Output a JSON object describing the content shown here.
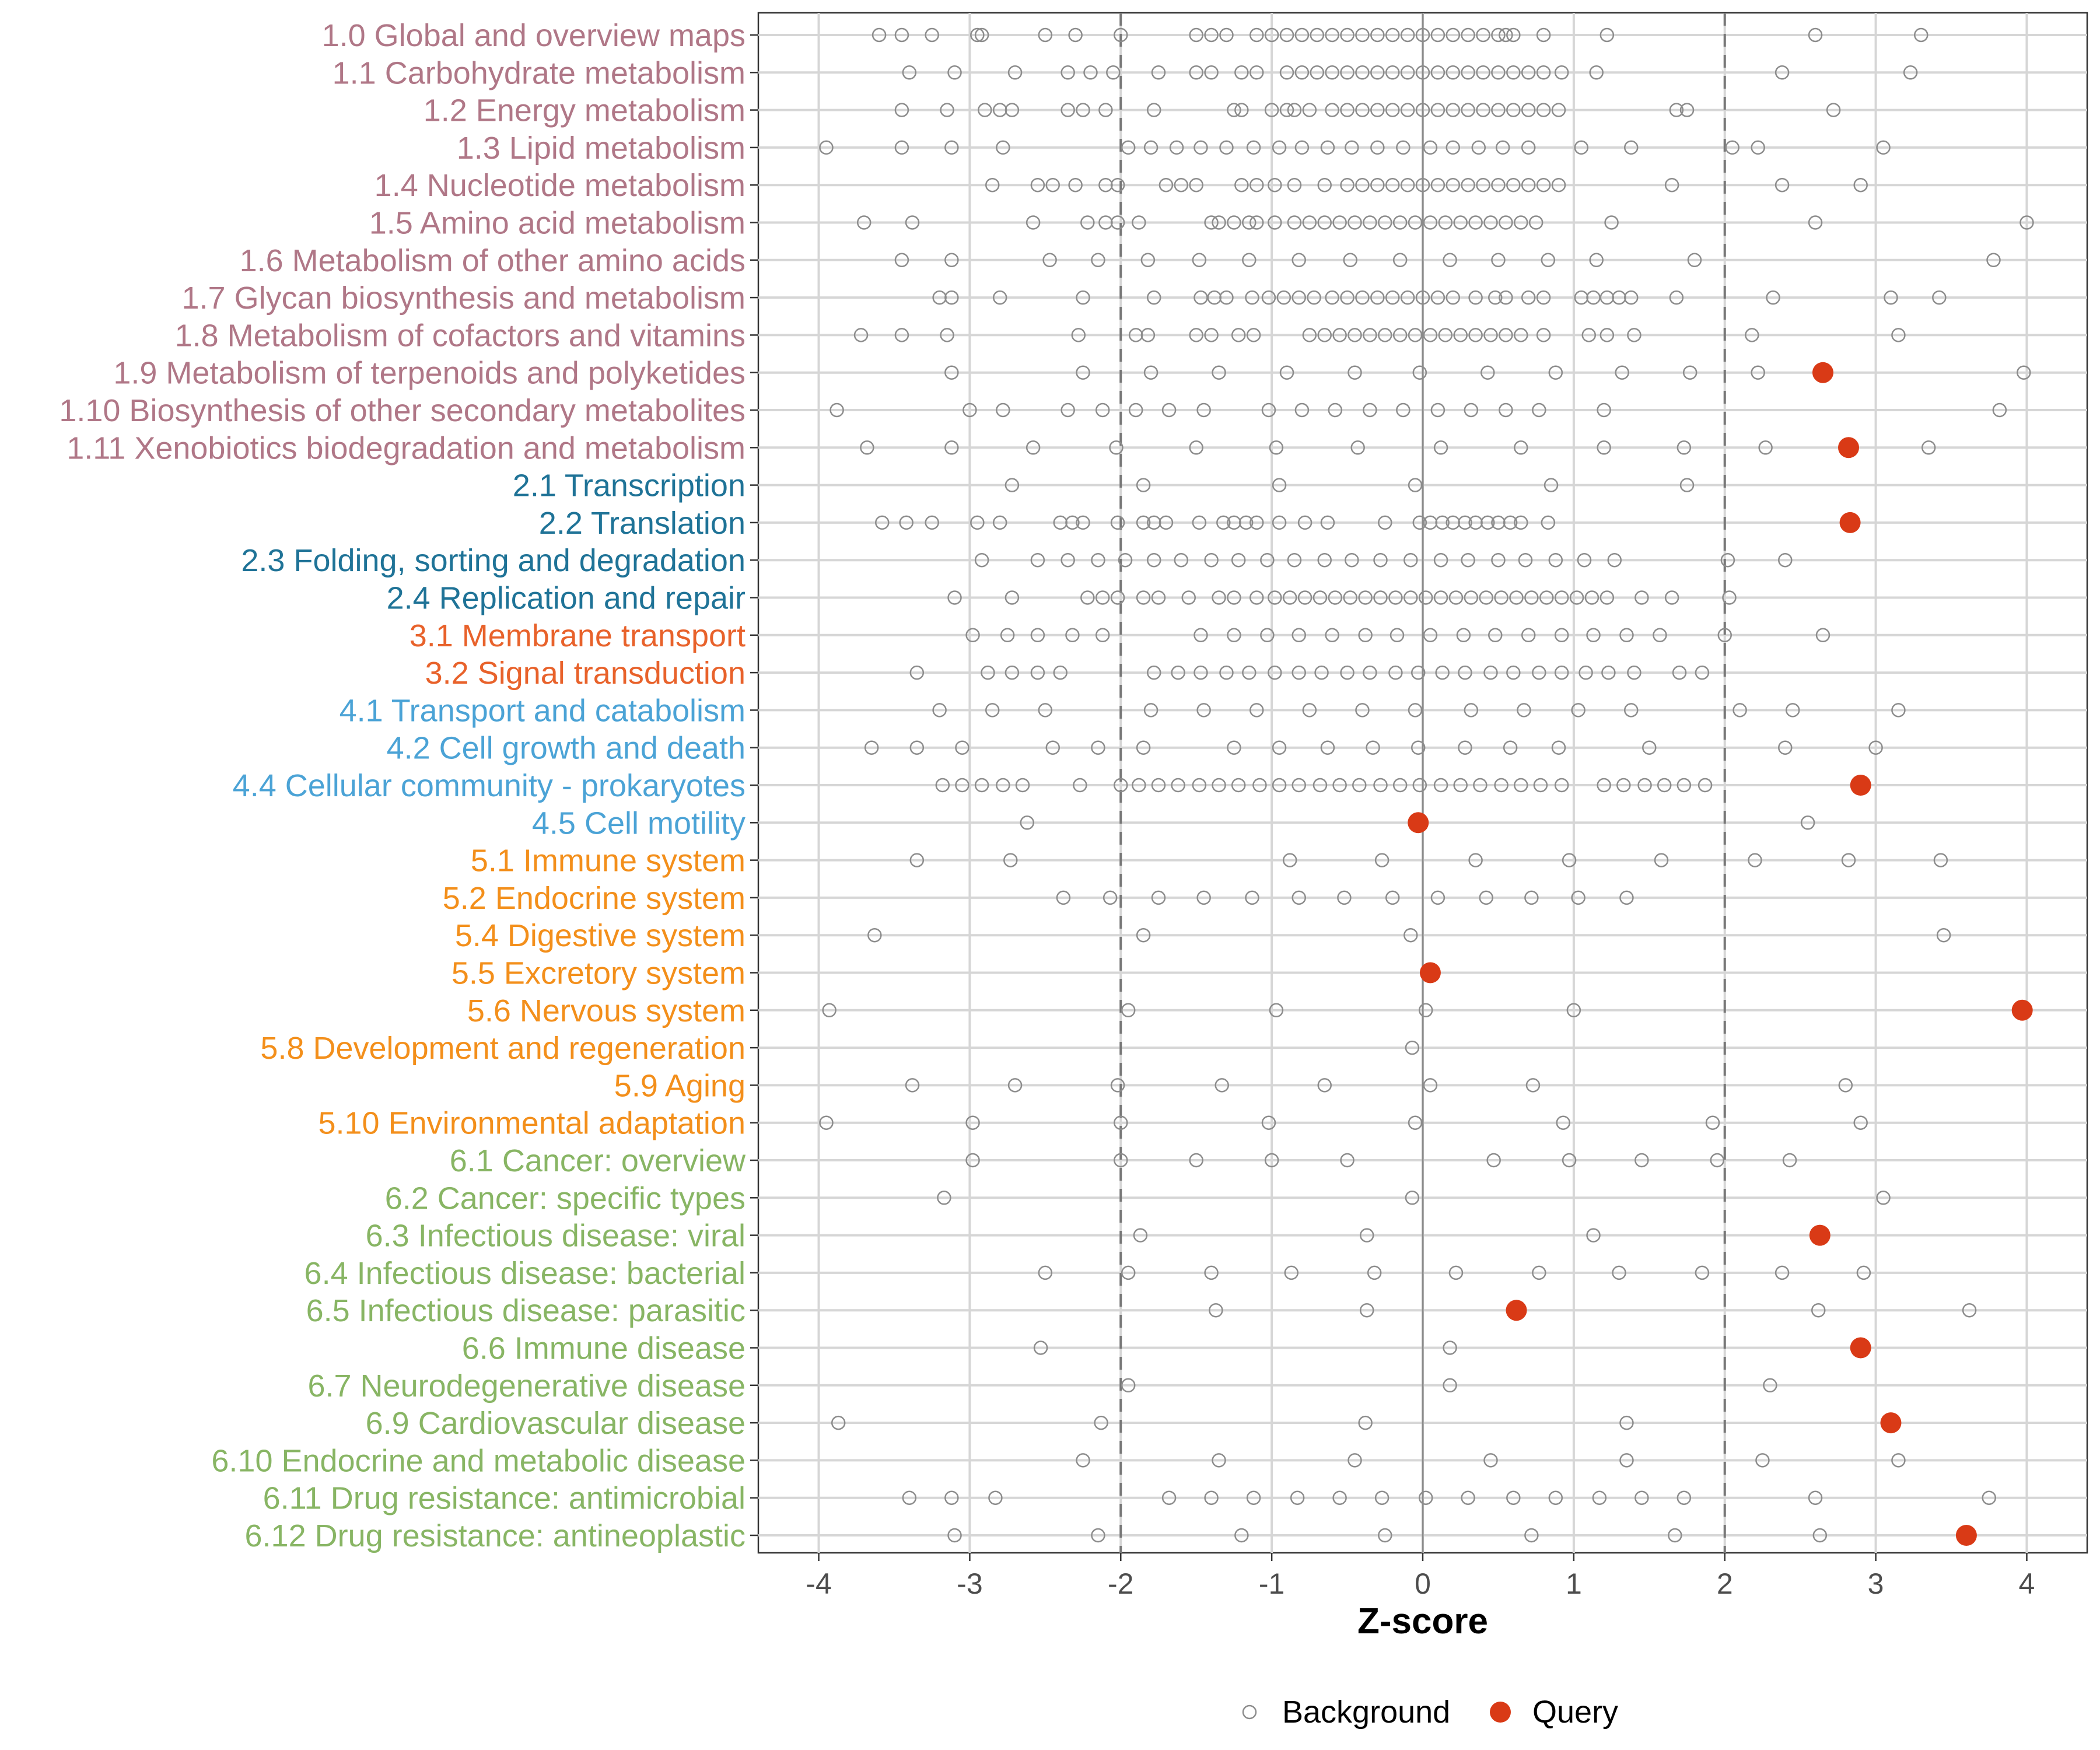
{
  "chart_data": {
    "type": "scatter",
    "xlabel": "Z-score",
    "xlim": [
      -4.4,
      4.4
    ],
    "xticks": [
      -4,
      -3,
      -2,
      -1,
      0,
      1,
      2,
      3,
      4
    ],
    "threshold_lines": [
      -2,
      2
    ],
    "zero_line": 0,
    "legend": {
      "position": "bottom",
      "entries": [
        {
          "name": "Background",
          "style": "open-circle",
          "color": "#8c8c8c"
        },
        {
          "name": "Query",
          "style": "filled-circle",
          "color": "#d93a16"
        }
      ]
    },
    "group_colors": {
      "1": "#b07787",
      "2": "#1f7397",
      "3": "#e8622b",
      "4": "#4ba3d6",
      "5": "#f38f1b",
      "6": "#88b564"
    },
    "categories": [
      {
        "label": "1.0 Global and overview maps",
        "group": "1",
        "query": null,
        "background": [
          -3.6,
          -3.45,
          -3.25,
          -2.95,
          -2.92,
          -2.5,
          -2.3,
          -2.0,
          -1.5,
          -1.4,
          -1.3,
          -1.1,
          -1.0,
          -0.9,
          -0.8,
          -0.7,
          -0.6,
          -0.5,
          -0.4,
          -0.3,
          -0.2,
          -0.1,
          0.0,
          0.1,
          0.2,
          0.3,
          0.4,
          0.5,
          0.55,
          0.6,
          0.8,
          1.22,
          2.6,
          3.3
        ]
      },
      {
        "label": "1.1 Carbohydrate metabolism",
        "group": "1",
        "query": null,
        "background": [
          -3.4,
          -3.1,
          -2.7,
          -2.35,
          -2.2,
          -2.05,
          -1.75,
          -1.5,
          -1.4,
          -1.2,
          -1.1,
          -0.9,
          -0.8,
          -0.7,
          -0.6,
          -0.5,
          -0.4,
          -0.3,
          -0.2,
          -0.1,
          0.0,
          0.1,
          0.2,
          0.3,
          0.4,
          0.5,
          0.6,
          0.7,
          0.8,
          0.92,
          1.15,
          2.38,
          3.23
        ]
      },
      {
        "label": "1.2 Energy metabolism",
        "group": "1",
        "query": null,
        "background": [
          -3.45,
          -3.15,
          -2.9,
          -2.8,
          -2.72,
          -2.35,
          -2.25,
          -2.1,
          -1.78,
          -1.25,
          -1.2,
          -1.0,
          -0.9,
          -0.85,
          -0.75,
          -0.6,
          -0.5,
          -0.4,
          -0.3,
          -0.2,
          -0.1,
          0.0,
          0.1,
          0.2,
          0.3,
          0.4,
          0.5,
          0.6,
          0.7,
          0.8,
          0.9,
          1.68,
          1.75,
          2.72
        ]
      },
      {
        "label": "1.3 Lipid metabolism",
        "group": "1",
        "query": null,
        "background": [
          -3.95,
          -3.45,
          -3.12,
          -2.78,
          -1.95,
          -1.8,
          -1.63,
          -1.47,
          -1.3,
          -1.12,
          -0.95,
          -0.8,
          -0.63,
          -0.47,
          -0.3,
          -0.13,
          0.05,
          0.2,
          0.37,
          0.53,
          0.7,
          1.05,
          1.38,
          2.05,
          2.22,
          3.05
        ]
      },
      {
        "label": "1.4 Nucleotide metabolism",
        "group": "1",
        "query": null,
        "background": [
          -2.85,
          -2.55,
          -2.45,
          -2.3,
          -2.1,
          -2.02,
          -1.7,
          -1.6,
          -1.5,
          -1.2,
          -1.1,
          -0.98,
          -0.85,
          -0.65,
          -0.5,
          -0.4,
          -0.3,
          -0.2,
          -0.1,
          0.0,
          0.1,
          0.2,
          0.3,
          0.4,
          0.5,
          0.6,
          0.7,
          0.8,
          0.9,
          1.65,
          2.38,
          2.9
        ]
      },
      {
        "label": "1.5 Amino acid metabolism",
        "group": "1",
        "query": null,
        "background": [
          -3.7,
          -3.38,
          -2.58,
          -2.22,
          -2.1,
          -2.02,
          -1.88,
          -1.4,
          -1.35,
          -1.25,
          -1.15,
          -1.1,
          -0.98,
          -0.85,
          -0.75,
          -0.65,
          -0.55,
          -0.45,
          -0.35,
          -0.25,
          -0.15,
          -0.05,
          0.05,
          0.15,
          0.25,
          0.35,
          0.45,
          0.55,
          0.65,
          0.75,
          1.25,
          2.6,
          4.0
        ]
      },
      {
        "label": "1.6 Metabolism of other amino acids",
        "group": "1",
        "query": null,
        "background": [
          -3.45,
          -3.12,
          -2.47,
          -2.15,
          -1.82,
          -1.48,
          -1.15,
          -0.82,
          -0.48,
          -0.15,
          0.18,
          0.5,
          0.83,
          1.15,
          1.8,
          3.78
        ]
      },
      {
        "label": "1.7 Glycan biosynthesis and metabolism",
        "group": "1",
        "query": null,
        "background": [
          -3.2,
          -3.12,
          -2.8,
          -2.25,
          -1.78,
          -1.47,
          -1.38,
          -1.3,
          -1.13,
          -1.02,
          -0.92,
          -0.82,
          -0.72,
          -0.6,
          -0.5,
          -0.4,
          -0.3,
          -0.2,
          -0.1,
          0.0,
          0.1,
          0.2,
          0.35,
          0.48,
          0.55,
          0.7,
          0.8,
          1.05,
          1.13,
          1.22,
          1.3,
          1.38,
          1.68,
          2.32,
          3.1,
          3.42
        ]
      },
      {
        "label": "1.8 Metabolism of cofactors and vitamins",
        "group": "1",
        "query": null,
        "background": [
          -3.72,
          -3.45,
          -3.15,
          -2.28,
          -1.9,
          -1.82,
          -1.5,
          -1.4,
          -1.22,
          -1.12,
          -0.75,
          -0.65,
          -0.55,
          -0.45,
          -0.35,
          -0.25,
          -0.15,
          -0.05,
          0.05,
          0.15,
          0.25,
          0.35,
          0.45,
          0.55,
          0.65,
          0.8,
          1.1,
          1.22,
          1.4,
          2.18,
          3.15
        ]
      },
      {
        "label": "1.9 Metabolism of terpenoids and polyketides",
        "group": "1",
        "query": 2.65,
        "background": [
          -3.12,
          -2.25,
          -1.8,
          -1.35,
          -0.9,
          -0.45,
          -0.02,
          0.43,
          0.88,
          1.32,
          1.77,
          2.22,
          3.98
        ]
      },
      {
        "label": "1.10 Biosynthesis of other secondary metabolites",
        "group": "1",
        "query": null,
        "background": [
          -3.88,
          -3.0,
          -2.78,
          -2.35,
          -2.12,
          -1.9,
          -1.68,
          -1.45,
          -1.02,
          -0.8,
          -0.58,
          -0.35,
          -0.13,
          0.1,
          0.32,
          0.55,
          0.77,
          1.2,
          3.82
        ]
      },
      {
        "label": "1.11 Xenobiotics biodegradation and metabolism",
        "group": "1",
        "query": 2.82,
        "background": [
          -3.68,
          -3.12,
          -2.58,
          -2.03,
          -1.5,
          -0.97,
          -0.43,
          0.12,
          0.65,
          1.2,
          1.73,
          2.27,
          3.35
        ]
      },
      {
        "label": "2.1 Transcription",
        "group": "2",
        "query": null,
        "background": [
          -2.72,
          -1.85,
          -0.95,
          -0.05,
          0.85,
          1.75
        ]
      },
      {
        "label": "2.2 Translation",
        "group": "2",
        "query": 2.83,
        "background": [
          -3.58,
          -3.42,
          -3.25,
          -2.95,
          -2.8,
          -2.4,
          -2.32,
          -2.25,
          -2.02,
          -1.85,
          -1.78,
          -1.7,
          -1.48,
          -1.32,
          -1.25,
          -1.17,
          -1.1,
          -0.95,
          -0.78,
          -0.63,
          -0.25,
          -0.02,
          0.05,
          0.13,
          0.2,
          0.28,
          0.35,
          0.43,
          0.5,
          0.58,
          0.65,
          0.83
        ]
      },
      {
        "label": "2.3 Folding, sorting and degradation",
        "group": "2",
        "query": null,
        "background": [
          -2.92,
          -2.55,
          -2.35,
          -2.15,
          -1.97,
          -1.78,
          -1.6,
          -1.4,
          -1.22,
          -1.03,
          -0.85,
          -0.65,
          -0.47,
          -0.28,
          -0.08,
          0.12,
          0.3,
          0.5,
          0.68,
          0.88,
          1.07,
          1.27,
          2.02,
          2.4
        ]
      },
      {
        "label": "2.4 Replication and repair",
        "group": "2",
        "query": null,
        "background": [
          -3.1,
          -2.72,
          -2.22,
          -2.12,
          -2.02,
          -1.85,
          -1.75,
          -1.55,
          -1.35,
          -1.25,
          -1.1,
          -0.98,
          -0.88,
          -0.78,
          -0.68,
          -0.58,
          -0.48,
          -0.38,
          -0.28,
          -0.18,
          -0.08,
          0.02,
          0.12,
          0.22,
          0.32,
          0.42,
          0.52,
          0.62,
          0.72,
          0.82,
          0.92,
          1.02,
          1.12,
          1.22,
          1.45,
          1.65,
          2.03
        ]
      },
      {
        "label": "3.1 Membrane transport",
        "group": "3",
        "query": null,
        "background": [
          -2.98,
          -2.75,
          -2.55,
          -2.32,
          -2.12,
          -1.47,
          -1.25,
          -1.03,
          -0.82,
          -0.6,
          -0.38,
          -0.17,
          0.05,
          0.27,
          0.48,
          0.7,
          0.92,
          1.13,
          1.35,
          1.57,
          2.0,
          2.65
        ]
      },
      {
        "label": "3.2 Signal transduction",
        "group": "3",
        "query": null,
        "background": [
          -3.35,
          -2.88,
          -2.72,
          -2.55,
          -2.4,
          -1.78,
          -1.62,
          -1.47,
          -1.3,
          -1.15,
          -0.98,
          -0.82,
          -0.67,
          -0.5,
          -0.35,
          -0.18,
          -0.03,
          0.13,
          0.28,
          0.45,
          0.6,
          0.77,
          0.92,
          1.08,
          1.23,
          1.4,
          1.7,
          1.85
        ]
      },
      {
        "label": "4.1 Transport and catabolism",
        "group": "4",
        "query": null,
        "background": [
          -3.2,
          -2.85,
          -2.5,
          -1.8,
          -1.45,
          -1.1,
          -0.75,
          -0.4,
          -0.05,
          0.32,
          0.67,
          1.03,
          1.38,
          2.1,
          2.45,
          3.15
        ]
      },
      {
        "label": "4.2 Cell growth and death",
        "group": "4",
        "query": null,
        "background": [
          -3.65,
          -3.35,
          -3.05,
          -2.45,
          -2.15,
          -1.85,
          -1.25,
          -0.95,
          -0.63,
          -0.33,
          -0.03,
          0.28,
          0.58,
          0.9,
          1.5,
          2.4,
          3.0
        ]
      },
      {
        "label": "4.4 Cellular community - prokaryotes",
        "group": "4",
        "query": 2.9,
        "background": [
          -3.18,
          -3.05,
          -2.92,
          -2.78,
          -2.65,
          -2.27,
          -2.0,
          -1.88,
          -1.75,
          -1.62,
          -1.48,
          -1.35,
          -1.22,
          -1.08,
          -0.95,
          -0.82,
          -0.68,
          -0.55,
          -0.42,
          -0.28,
          -0.15,
          -0.02,
          0.12,
          0.25,
          0.38,
          0.52,
          0.65,
          0.78,
          0.92,
          1.2,
          1.33,
          1.47,
          1.6,
          1.73,
          1.87
        ]
      },
      {
        "label": "4.5 Cell motility",
        "group": "4",
        "query": -0.03,
        "background": [
          -2.62,
          2.55
        ]
      },
      {
        "label": "5.1 Immune system",
        "group": "5",
        "query": null,
        "background": [
          -3.35,
          -2.73,
          -0.88,
          -0.27,
          0.35,
          0.97,
          1.58,
          2.2,
          2.82,
          3.43
        ]
      },
      {
        "label": "5.2 Endocrine system",
        "group": "5",
        "query": null,
        "background": [
          -2.38,
          -2.07,
          -1.75,
          -1.45,
          -1.13,
          -0.82,
          -0.52,
          -0.2,
          0.1,
          0.42,
          0.72,
          1.03,
          1.35
        ]
      },
      {
        "label": "5.4 Digestive system",
        "group": "5",
        "query": null,
        "background": [
          -3.63,
          -1.85,
          -0.08,
          3.45
        ]
      },
      {
        "label": "5.5 Excretory system",
        "group": "5",
        "query": 0.05,
        "background": []
      },
      {
        "label": "5.6 Nervous system",
        "group": "5",
        "query": 3.97,
        "background": [
          -3.93,
          -1.95,
          -0.97,
          0.02,
          1.0
        ]
      },
      {
        "label": "5.8 Development and regeneration",
        "group": "5",
        "query": null,
        "background": [
          -0.07
        ]
      },
      {
        "label": "5.9 Aging",
        "group": "5",
        "query": null,
        "background": [
          -3.38,
          -2.7,
          -2.02,
          -1.33,
          -0.65,
          0.05,
          0.73,
          2.8
        ]
      },
      {
        "label": "5.10 Environmental adaptation",
        "group": "5",
        "query": null,
        "background": [
          -3.95,
          -2.98,
          -2.0,
          -1.02,
          -0.05,
          0.93,
          1.92,
          2.9
        ]
      },
      {
        "label": "6.1 Cancer: overview",
        "group": "6",
        "query": null,
        "background": [
          -2.98,
          -2.0,
          -1.5,
          -1.0,
          -0.5,
          0.47,
          0.97,
          1.45,
          1.95,
          2.43
        ]
      },
      {
        "label": "6.2 Cancer: specific types",
        "group": "6",
        "query": null,
        "background": [
          -3.17,
          -0.07,
          3.05
        ]
      },
      {
        "label": "6.3 Infectious disease: viral",
        "group": "6",
        "query": 2.63,
        "background": [
          -1.87,
          -0.37,
          1.13
        ]
      },
      {
        "label": "6.4 Infectious disease: bacterial",
        "group": "6",
        "query": null,
        "background": [
          -2.5,
          -1.95,
          -1.4,
          -0.87,
          -0.32,
          0.22,
          0.77,
          1.3,
          1.85,
          2.38,
          2.92
        ]
      },
      {
        "label": "6.5 Infectious disease: parasitic",
        "group": "6",
        "query": 0.62,
        "background": [
          -1.37,
          -0.37,
          2.62,
          3.62
        ]
      },
      {
        "label": "6.6 Immune disease",
        "group": "6",
        "query": 2.9,
        "background": [
          -2.53,
          0.18
        ]
      },
      {
        "label": "6.7 Neurodegenerative disease",
        "group": "6",
        "query": null,
        "background": [
          -1.95,
          0.18,
          2.3
        ]
      },
      {
        "label": "6.9 Cardiovascular disease",
        "group": "6",
        "query": 3.1,
        "background": [
          -3.87,
          -2.13,
          -0.38,
          1.35
        ]
      },
      {
        "label": "6.10 Endocrine and metabolic disease",
        "group": "6",
        "query": null,
        "background": [
          -2.25,
          -1.35,
          -0.45,
          0.45,
          1.35,
          2.25,
          3.15
        ]
      },
      {
        "label": "6.11 Drug resistance: antimicrobial",
        "group": "6",
        "query": null,
        "background": [
          -3.4,
          -3.12,
          -2.83,
          -1.68,
          -1.4,
          -1.12,
          -0.83,
          -0.55,
          -0.27,
          0.02,
          0.3,
          0.6,
          0.88,
          1.17,
          1.45,
          1.73,
          2.6,
          3.75
        ]
      },
      {
        "label": "6.12 Drug resistance: antineoplastic",
        "group": "6",
        "query": 3.6,
        "background": [
          -3.1,
          -2.15,
          -1.2,
          -0.25,
          0.72,
          1.67,
          2.63
        ]
      }
    ]
  }
}
